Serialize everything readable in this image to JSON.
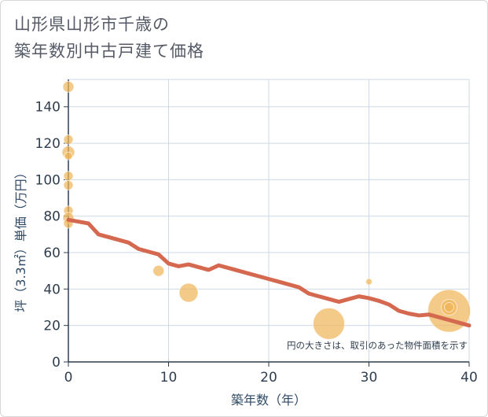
{
  "title": {
    "line1": "山形県山形市千歳の",
    "line2": "築年数別中古戸建て価格"
  },
  "chart_data": {
    "type": "scatter",
    "title": "山形県山形市千歳の 築年数別中古戸建て価格",
    "xlabel": "築年数（年）",
    "ylabel": "坪（3.3㎡）単価（万円）",
    "xlim": [
      0,
      40
    ],
    "ylim": [
      0,
      155
    ],
    "x_ticks": [
      0,
      10,
      20,
      30,
      40
    ],
    "y_ticks": [
      0,
      20,
      40,
      60,
      80,
      100,
      120,
      140
    ],
    "grid": true,
    "annotation": "円の大きさは、取引のあった物件面積を示す",
    "colors": {
      "bubble": "#f0b55a",
      "trend": "#d4694f",
      "grid": "#cdd9e6",
      "axis": "#2f3e4e"
    },
    "bubbles": [
      {
        "x": 0,
        "y": 151,
        "size": 7
      },
      {
        "x": 0,
        "y": 122,
        "size": 6
      },
      {
        "x": 0,
        "y": 115,
        "size": 8
      },
      {
        "x": 0,
        "y": 113,
        "size": 5
      },
      {
        "x": 0,
        "y": 102,
        "size": 6
      },
      {
        "x": 0,
        "y": 97,
        "size": 6
      },
      {
        "x": 0,
        "y": 83,
        "size": 6
      },
      {
        "x": 0,
        "y": 79,
        "size": 7
      },
      {
        "x": 0,
        "y": 76,
        "size": 6
      },
      {
        "x": 9,
        "y": 50,
        "size": 7
      },
      {
        "x": 12,
        "y": 38,
        "size": 12
      },
      {
        "x": 26,
        "y": 21,
        "size": 20
      },
      {
        "x": 30,
        "y": 44,
        "size": 4
      },
      {
        "x": 38,
        "y": 28,
        "size": 27
      },
      {
        "x": 38,
        "y": 30,
        "size": 10
      },
      {
        "x": 38,
        "y": 30,
        "size": 6
      }
    ],
    "series": [
      {
        "name": "trend",
        "x": [
          0,
          1,
          2,
          3,
          4,
          5,
          6,
          7,
          8,
          9,
          10,
          11,
          12,
          13,
          14,
          15,
          16,
          17,
          18,
          19,
          20,
          21,
          22,
          23,
          24,
          25,
          26,
          27,
          28,
          29,
          30,
          31,
          32,
          33,
          34,
          35,
          36,
          37,
          38,
          39,
          40
        ],
        "y": [
          78,
          77,
          76,
          70,
          68.5,
          67,
          65.5,
          62,
          60.5,
          59,
          54,
          52.5,
          53.5,
          52,
          50.5,
          53,
          51.5,
          50,
          48.5,
          47,
          45.5,
          44,
          42.5,
          41,
          37.5,
          36,
          34.5,
          33,
          34.5,
          36,
          35,
          33.5,
          31.5,
          28,
          26.5,
          25.5,
          26,
          24.5,
          23,
          21.5,
          20
        ]
      }
    ]
  }
}
